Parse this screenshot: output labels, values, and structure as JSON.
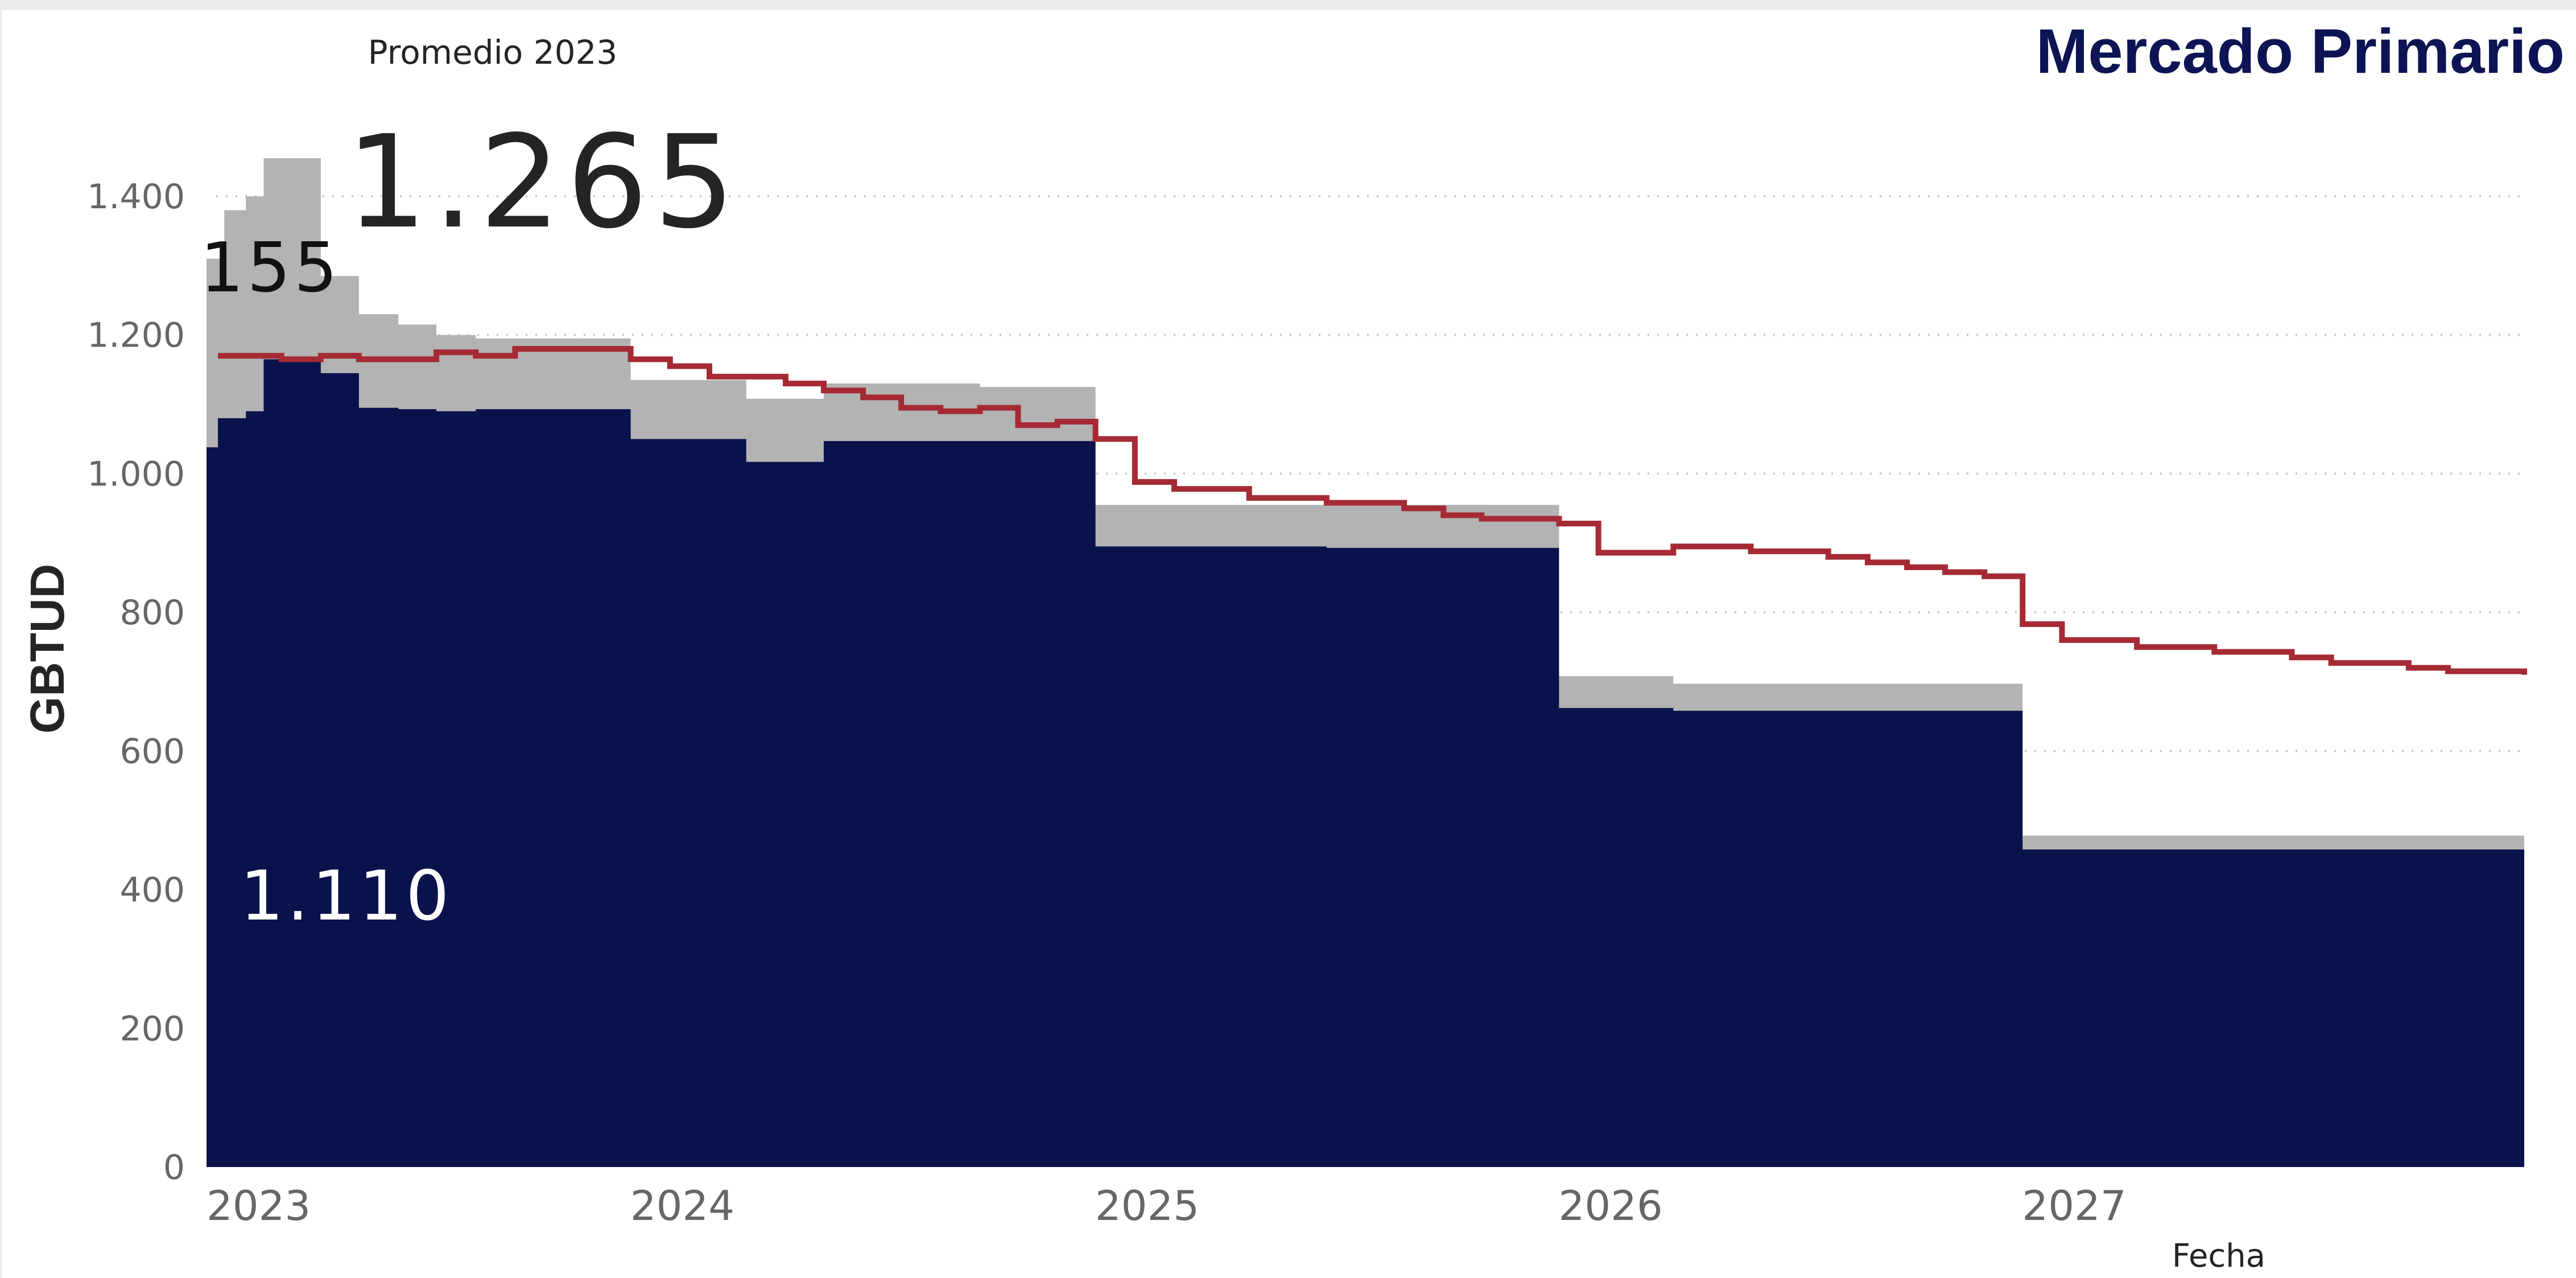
{
  "title": "Mercado Primario",
  "kpi": {
    "caption": "Promedio 2023",
    "value": "1.265"
  },
  "colors": {
    "title": "#0c1454",
    "base_series": "#0a124c",
    "additional_series": "#b3b3b3",
    "line_series": "#a52a34",
    "grid": "#c8c8c8"
  },
  "chart_data": {
    "type": "area",
    "xlabel": "Fecha",
    "ylabel": "GBTUD",
    "x_ticks": [
      "2023",
      "2024",
      "2025",
      "2026",
      "2027"
    ],
    "y_ticks": [
      {
        "value": 0,
        "label": "0"
      },
      {
        "value": 200,
        "label": "200"
      },
      {
        "value": 400,
        "label": "400"
      },
      {
        "value": 600,
        "label": "600"
      },
      {
        "value": 800,
        "label": "800"
      },
      {
        "value": 1000,
        "label": "1.000"
      },
      {
        "value": 1200,
        "label": "1.200"
      },
      {
        "value": 1400,
        "label": "1.400"
      }
    ],
    "ylim": [
      0,
      1400
    ],
    "xlim": [
      "2023-01-01",
      "2027-12-31"
    ],
    "grid": true,
    "data_labels": {
      "top_label": "155",
      "base_label": "1.110"
    },
    "series": [
      {
        "kind": "stacked-step-base",
        "points": [
          [
            "2023-01-01",
            1038
          ],
          [
            "2023-01-10",
            1080
          ],
          [
            "2023-02-01",
            1090
          ],
          [
            "2023-02-15",
            1165
          ],
          [
            "2023-03-01",
            1162
          ],
          [
            "2023-04-01",
            1145
          ],
          [
            "2023-05-01",
            1095
          ],
          [
            "2023-06-01",
            1093
          ],
          [
            "2023-07-01",
            1090
          ],
          [
            "2023-08-01",
            1093
          ],
          [
            "2023-12-01",
            1050
          ],
          [
            "2024-03-01",
            1017
          ],
          [
            "2024-05-01",
            1047
          ],
          [
            "2024-12-01",
            895
          ],
          [
            "2025-06-01",
            893
          ],
          [
            "2025-12-01",
            662
          ],
          [
            "2026-03-01",
            658
          ],
          [
            "2026-12-01",
            458
          ],
          [
            "2027-12-31",
            458
          ]
        ]
      },
      {
        "kind": "stacked-step-additional-total",
        "points": [
          [
            "2023-01-01",
            1310
          ],
          [
            "2023-01-15",
            1380
          ],
          [
            "2023-02-01",
            1400
          ],
          [
            "2023-02-15",
            1455
          ],
          [
            "2023-04-01",
            1285
          ],
          [
            "2023-05-01",
            1230
          ],
          [
            "2023-06-01",
            1215
          ],
          [
            "2023-07-01",
            1200
          ],
          [
            "2023-08-01",
            1195
          ],
          [
            "2023-12-01",
            1135
          ],
          [
            "2024-03-01",
            1108
          ],
          [
            "2024-05-01",
            1130
          ],
          [
            "2024-09-01",
            1125
          ],
          [
            "2024-12-01",
            955
          ],
          [
            "2025-12-01",
            708
          ],
          [
            "2026-03-01",
            697
          ],
          [
            "2026-12-01",
            478
          ],
          [
            "2027-12-31",
            478
          ]
        ]
      },
      {
        "kind": "step-line",
        "points": [
          [
            "2023-01-10",
            1170
          ],
          [
            "2023-03-01",
            1165
          ],
          [
            "2023-04-01",
            1170
          ],
          [
            "2023-05-01",
            1165
          ],
          [
            "2023-07-01",
            1175
          ],
          [
            "2023-08-01",
            1170
          ],
          [
            "2023-09-01",
            1180
          ],
          [
            "2023-12-01",
            1165
          ],
          [
            "2024-01-01",
            1155
          ],
          [
            "2024-02-01",
            1140
          ],
          [
            "2024-04-01",
            1130
          ],
          [
            "2024-05-01",
            1120
          ],
          [
            "2024-06-01",
            1110
          ],
          [
            "2024-07-01",
            1095
          ],
          [
            "2024-08-01",
            1090
          ],
          [
            "2024-09-01",
            1095
          ],
          [
            "2024-10-01",
            1070
          ],
          [
            "2024-11-01",
            1075
          ],
          [
            "2024-12-01",
            1050
          ],
          [
            "2025-01-01",
            988
          ],
          [
            "2025-02-01",
            978
          ],
          [
            "2025-04-01",
            965
          ],
          [
            "2025-06-01",
            958
          ],
          [
            "2025-08-01",
            950
          ],
          [
            "2025-09-01",
            940
          ],
          [
            "2025-10-01",
            935
          ],
          [
            "2025-12-01",
            928
          ],
          [
            "2026-01-01",
            886
          ],
          [
            "2026-03-01",
            895
          ],
          [
            "2026-05-01",
            888
          ],
          [
            "2026-07-01",
            880
          ],
          [
            "2026-08-01",
            872
          ],
          [
            "2026-09-01",
            865
          ],
          [
            "2026-10-01",
            858
          ],
          [
            "2026-11-01",
            852
          ],
          [
            "2026-12-01",
            783
          ],
          [
            "2027-01-01",
            760
          ],
          [
            "2027-03-01",
            750
          ],
          [
            "2027-05-01",
            743
          ],
          [
            "2027-07-01",
            735
          ],
          [
            "2027-08-01",
            727
          ],
          [
            "2027-10-01",
            720
          ],
          [
            "2027-11-01",
            715
          ],
          [
            "2027-12-31",
            710
          ]
        ]
      }
    ]
  }
}
